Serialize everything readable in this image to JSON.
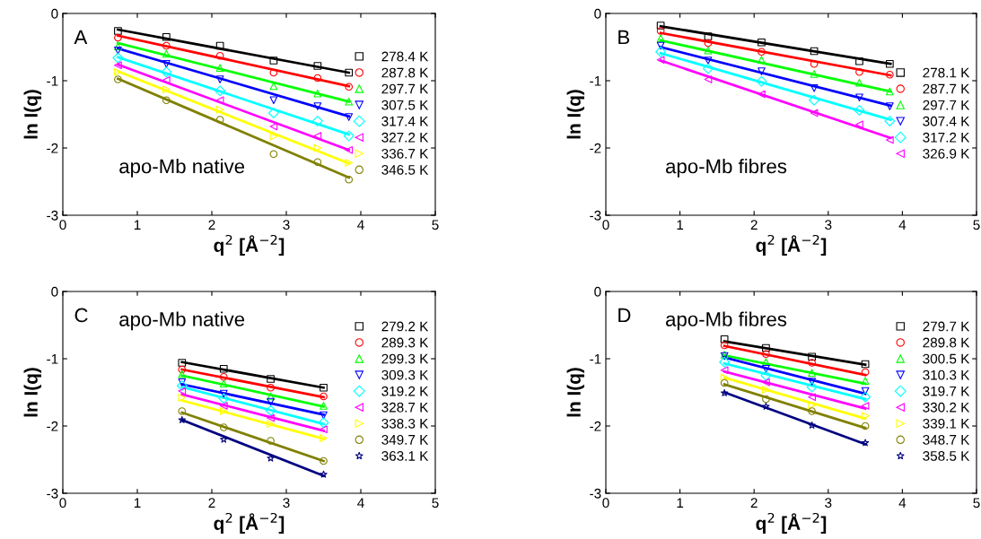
{
  "chart_data": [
    {
      "type": "scatter",
      "xlabel": "q$^{2}$ [Å$^{−2}$]",
      "ylabel": "ln I(q)",
      "annotations": [
        "A",
        "apo-Mb native"
      ],
      "xlim": [
        0,
        5
      ],
      "ylim": [
        -3,
        0
      ],
      "xticks": [
        0,
        1,
        2,
        3,
        4,
        5
      ],
      "yticks": [
        -3,
        -2,
        -1,
        0
      ],
      "legend": "right",
      "grid": false,
      "x": [
        0.74,
        1.39,
        2.11,
        2.83,
        3.42,
        3.84
      ],
      "series": [
        {
          "name": "278.4 K",
          "color": "#000000",
          "marker": "square",
          "values": [
            -0.26,
            -0.35,
            -0.48,
            -0.7,
            -0.78,
            -0.88
          ]
        },
        {
          "name": "287.8 K",
          "color": "#ff0000",
          "marker": "circle",
          "values": [
            -0.36,
            -0.48,
            -0.63,
            -0.88,
            -0.96,
            -1.09
          ]
        },
        {
          "name": "297.7 K",
          "color": "#00ff00",
          "marker": "triangle",
          "values": [
            -0.49,
            -0.6,
            -0.81,
            -1.08,
            -1.19,
            -1.31
          ]
        },
        {
          "name": "307.5 K",
          "color": "#0000ff",
          "marker": "triangle_down",
          "values": [
            -0.55,
            -0.75,
            -0.98,
            -1.29,
            -1.38,
            -1.54
          ]
        },
        {
          "name": "317.4 K",
          "color": "#00ffff",
          "marker": "diamond",
          "values": [
            -0.66,
            -0.87,
            -1.15,
            -1.48,
            -1.6,
            -1.82
          ]
        },
        {
          "name": "327.2 K",
          "color": "#ff00ff",
          "marker": "triangle_left",
          "values": [
            -0.77,
            -0.99,
            -1.29,
            -1.68,
            -1.82,
            -2.03
          ]
        },
        {
          "name": "336.7 K",
          "color": "#ffff00",
          "marker": "triangle_right",
          "values": [
            -0.87,
            -1.13,
            -1.43,
            -1.83,
            -2.0,
            -2.22
          ]
        },
        {
          "name": "346.5 K",
          "color": "#808000",
          "marker": "circle",
          "values": [
            -0.98,
            -1.29,
            -1.58,
            -2.09,
            -2.21,
            -2.47
          ]
        },
        {
          "type": "line",
          "color": "#000000",
          "x": [
            0.74,
            3.84
          ],
          "values": [
            -0.24,
            -0.88
          ]
        },
        {
          "type": "line",
          "color": "#ff0000",
          "x": [
            0.74,
            3.84
          ],
          "values": [
            -0.33,
            -1.08
          ]
        },
        {
          "type": "line",
          "color": "#00ff00",
          "x": [
            0.74,
            3.84
          ],
          "values": [
            -0.44,
            -1.31
          ]
        },
        {
          "type": "line",
          "color": "#0000ff",
          "x": [
            0.74,
            3.84
          ],
          "values": [
            -0.52,
            -1.53
          ]
        },
        {
          "type": "line",
          "color": "#00ffff",
          "x": [
            0.74,
            3.84
          ],
          "values": [
            -0.65,
            -1.8
          ]
        },
        {
          "type": "line",
          "color": "#ff00ff",
          "x": [
            0.74,
            3.84
          ],
          "values": [
            -0.76,
            -2.03
          ]
        },
        {
          "type": "line",
          "color": "#ffff00",
          "x": [
            0.74,
            3.84
          ],
          "values": [
            -0.86,
            -2.23
          ]
        },
        {
          "type": "line",
          "color": "#808000",
          "x": [
            0.74,
            3.84
          ],
          "values": [
            -0.97,
            -2.44
          ]
        }
      ]
    },
    {
      "type": "scatter",
      "xlabel": "q$^{2}$ [Å$^{−2}$]",
      "ylabel": "ln I(q)",
      "annotations": [
        "B",
        "apo-Mb fibres"
      ],
      "xlim": [
        0,
        5
      ],
      "ylim": [
        -3,
        0
      ],
      "xticks": [
        0,
        1,
        2,
        3,
        4,
        5
      ],
      "yticks": [
        -3,
        -2,
        -1,
        0
      ],
      "legend": "right",
      "grid": false,
      "x": [
        0.74,
        1.38,
        2.1,
        2.81,
        3.42,
        3.83
      ],
      "series": [
        {
          "name": "278.1 K",
          "color": "#000000",
          "marker": "square",
          "values": [
            -0.18,
            -0.34,
            -0.43,
            -0.56,
            -0.71,
            -0.75
          ]
        },
        {
          "name": "287.7 K",
          "color": "#ff0000",
          "marker": "circle",
          "values": [
            -0.26,
            -0.44,
            -0.57,
            -0.75,
            -0.87,
            -0.91
          ]
        },
        {
          "name": "297.7 K",
          "color": "#00ff00",
          "marker": "triangle",
          "values": [
            -0.37,
            -0.55,
            -0.69,
            -0.9,
            -1.03,
            -1.16
          ]
        },
        {
          "name": "307.4 K",
          "color": "#0000ff",
          "marker": "triangle_down",
          "values": [
            -0.48,
            -0.7,
            -0.86,
            -1.11,
            -1.25,
            -1.38
          ]
        },
        {
          "name": "317.2 K",
          "color": "#00ffff",
          "marker": "diamond",
          "values": [
            -0.57,
            -0.82,
            -1.01,
            -1.29,
            -1.44,
            -1.6
          ]
        },
        {
          "name": "326.9 K",
          "color": "#ff00ff",
          "marker": "triangle_left",
          "values": [
            -0.69,
            -0.98,
            -1.2,
            -1.48,
            -1.65,
            -1.88
          ]
        },
        {
          "type": "line",
          "color": "#000000",
          "x": [
            0.74,
            3.84
          ],
          "values": [
            -0.19,
            -0.75
          ]
        },
        {
          "type": "line",
          "color": "#ff0000",
          "x": [
            0.74,
            3.84
          ],
          "values": [
            -0.29,
            -0.92
          ]
        },
        {
          "type": "line",
          "color": "#00ff00",
          "x": [
            0.74,
            3.84
          ],
          "values": [
            -0.4,
            -1.16
          ]
        },
        {
          "type": "line",
          "color": "#0000ff",
          "x": [
            0.74,
            3.84
          ],
          "values": [
            -0.5,
            -1.37
          ]
        },
        {
          "type": "line",
          "color": "#00ffff",
          "x": [
            0.74,
            3.84
          ],
          "values": [
            -0.59,
            -1.58
          ]
        },
        {
          "type": "line",
          "color": "#ff00ff",
          "x": [
            0.74,
            3.84
          ],
          "values": [
            -0.7,
            -1.85
          ]
        }
      ]
    },
    {
      "type": "scatter",
      "xlabel": "q$^{2}$ [Å$^{−2}$]",
      "ylabel": "ln I(q)",
      "annotations": [
        "C",
        "apo-Mb native"
      ],
      "xlim": [
        0,
        5
      ],
      "ylim": [
        -3,
        0
      ],
      "xticks": [
        0,
        1,
        2,
        3,
        4,
        5
      ],
      "yticks": [
        -3,
        -2,
        -1,
        0
      ],
      "legend": "right",
      "grid": false,
      "x": [
        1.6,
        2.16,
        2.79,
        3.5
      ],
      "series": [
        {
          "name": "279.2 K",
          "color": "#000000",
          "marker": "square",
          "values": [
            -1.06,
            -1.15,
            -1.3,
            -1.43
          ]
        },
        {
          "name": "289.3 K",
          "color": "#ff0000",
          "marker": "circle",
          "values": [
            -1.16,
            -1.27,
            -1.43,
            -1.56
          ]
        },
        {
          "name": "299.3 K",
          "color": "#00ff00",
          "marker": "triangle",
          "values": [
            -1.23,
            -1.37,
            -1.56,
            -1.7
          ]
        },
        {
          "name": "309.3 K",
          "color": "#0000ff",
          "marker": "triangle_down",
          "values": [
            -1.35,
            -1.52,
            -1.64,
            -1.84
          ]
        },
        {
          "name": "319.2 K",
          "color": "#00ffff",
          "marker": "diamond",
          "values": [
            -1.4,
            -1.59,
            -1.77,
            -1.95
          ]
        },
        {
          "name": "328.7 K",
          "color": "#ff00ff",
          "marker": "triangle_left",
          "values": [
            -1.48,
            -1.7,
            -1.88,
            -2.05
          ]
        },
        {
          "name": "338.3 K",
          "color": "#ffff00",
          "marker": "triangle_right",
          "values": [
            -1.58,
            -1.78,
            -1.97,
            -2.18
          ]
        },
        {
          "name": "349.7 K",
          "color": "#808000",
          "marker": "circle",
          "values": [
            -1.78,
            -2.02,
            -2.22,
            -2.52
          ]
        },
        {
          "name": "363.1 K",
          "color": "#000080",
          "marker": "star",
          "values": [
            -1.91,
            -2.2,
            -2.48,
            -2.72
          ]
        },
        {
          "type": "line",
          "color": "#000000",
          "x": [
            1.6,
            3.5
          ],
          "values": [
            -1.05,
            -1.43
          ]
        },
        {
          "type": "line",
          "color": "#ff0000",
          "x": [
            1.6,
            3.5
          ],
          "values": [
            -1.16,
            -1.57
          ]
        },
        {
          "type": "line",
          "color": "#00ff00",
          "x": [
            1.6,
            3.5
          ],
          "values": [
            -1.25,
            -1.71
          ]
        },
        {
          "type": "line",
          "color": "#0000ff",
          "x": [
            1.6,
            3.5
          ],
          "values": [
            -1.38,
            -1.83
          ]
        },
        {
          "type": "line",
          "color": "#00ffff",
          "x": [
            1.6,
            3.5
          ],
          "values": [
            -1.42,
            -1.97
          ]
        },
        {
          "type": "line",
          "color": "#ff00ff",
          "x": [
            1.6,
            3.5
          ],
          "values": [
            -1.53,
            -2.07
          ]
        },
        {
          "type": "line",
          "color": "#ffff00",
          "x": [
            1.6,
            3.5
          ],
          "values": [
            -1.62,
            -2.19
          ]
        },
        {
          "type": "line",
          "color": "#808000",
          "x": [
            1.6,
            3.5
          ],
          "values": [
            -1.8,
            -2.52
          ]
        },
        {
          "type": "line",
          "color": "#000080",
          "x": [
            1.6,
            3.5
          ],
          "values": [
            -1.91,
            -2.74
          ]
        }
      ]
    },
    {
      "type": "scatter",
      "xlabel": "q$^{2}$ [Å$^{−2}$]",
      "ylabel": "ln I(q)",
      "annotations": [
        "D",
        "apo-Mb fibres"
      ],
      "xlim": [
        0,
        5
      ],
      "ylim": [
        -3,
        0
      ],
      "xticks": [
        0,
        1,
        2,
        3,
        4,
        5
      ],
      "yticks": [
        -3,
        -2,
        -1,
        0
      ],
      "legend": "right",
      "grid": false,
      "x": [
        1.6,
        2.16,
        2.78,
        3.5
      ],
      "series": [
        {
          "name": "279.7 K",
          "color": "#000000",
          "marker": "square",
          "values": [
            -0.71,
            -0.84,
            -0.97,
            -1.08
          ]
        },
        {
          "name": "289.8 K",
          "color": "#ff0000",
          "marker": "circle",
          "values": [
            -0.8,
            -0.93,
            -1.06,
            -1.2
          ]
        },
        {
          "name": "300.5 K",
          "color": "#00ff00",
          "marker": "triangle",
          "values": [
            -0.94,
            -1.05,
            -1.21,
            -1.33
          ]
        },
        {
          "name": "310.3 K",
          "color": "#0000ff",
          "marker": "triangle_down",
          "values": [
            -0.96,
            -1.15,
            -1.34,
            -1.48
          ]
        },
        {
          "name": "319.7 K",
          "color": "#00ffff",
          "marker": "diamond",
          "values": [
            -1.05,
            -1.25,
            -1.42,
            -1.57
          ]
        },
        {
          "name": "330.2 K",
          "color": "#ff00ff",
          "marker": "triangle_left",
          "values": [
            -1.17,
            -1.35,
            -1.57,
            -1.7
          ]
        },
        {
          "name": "339.1 K",
          "color": "#ffff00",
          "marker": "triangle_right",
          "values": [
            -1.28,
            -1.46,
            -1.69,
            -1.85
          ]
        },
        {
          "name": "348.7 K",
          "color": "#808000",
          "marker": "circle",
          "values": [
            -1.36,
            -1.6,
            -1.78,
            -2.0
          ]
        },
        {
          "name": "358.5 K",
          "color": "#000080",
          "marker": "star",
          "values": [
            -1.51,
            -1.71,
            -1.99,
            -2.25
          ]
        },
        {
          "type": "line",
          "color": "#000000",
          "x": [
            1.6,
            3.5
          ],
          "values": [
            -0.74,
            -1.09
          ]
        },
        {
          "type": "line",
          "color": "#ff0000",
          "x": [
            1.6,
            3.5
          ],
          "values": [
            -0.81,
            -1.24
          ]
        },
        {
          "type": "line",
          "color": "#00ff00",
          "x": [
            1.6,
            3.5
          ],
          "values": [
            -0.95,
            -1.37
          ]
        },
        {
          "type": "line",
          "color": "#0000ff",
          "x": [
            1.6,
            3.5
          ],
          "values": [
            -0.98,
            -1.52
          ]
        },
        {
          "type": "line",
          "color": "#00ffff",
          "x": [
            1.6,
            3.5
          ],
          "values": [
            -1.07,
            -1.6
          ]
        },
        {
          "type": "line",
          "color": "#ff00ff",
          "x": [
            1.6,
            3.5
          ],
          "values": [
            -1.19,
            -1.74
          ]
        },
        {
          "type": "line",
          "color": "#ffff00",
          "x": [
            1.6,
            3.5
          ],
          "values": [
            -1.28,
            -1.89
          ]
        },
        {
          "type": "line",
          "color": "#808000",
          "x": [
            1.6,
            3.5
          ],
          "values": [
            -1.38,
            -2.03
          ]
        },
        {
          "type": "line",
          "color": "#000080",
          "x": [
            1.6,
            3.5
          ],
          "values": [
            -1.5,
            -2.27
          ]
        }
      ]
    }
  ]
}
